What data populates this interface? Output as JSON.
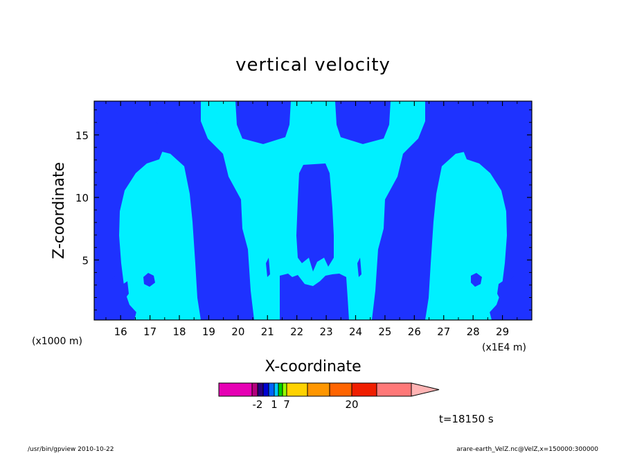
{
  "chart_data": {
    "type": "heatmap",
    "title": "vertical velocity",
    "xlabel": "X-coordinate",
    "ylabel": "Z-coordinate",
    "x_unit_left": "(x1000 m)",
    "x_unit_right": "(x1E4 m)",
    "xlim": [
      15.1,
      30.0
    ],
    "ylim": [
      0.2,
      17.7
    ],
    "x_ticks": [
      16,
      17,
      18,
      19,
      20,
      21,
      22,
      23,
      24,
      25,
      26,
      27,
      28,
      29
    ],
    "y_ticks": [
      5,
      10,
      15
    ],
    "field_colors": {
      "weak_positive": "#00f0ff",
      "weak_negative": "#1e32ff"
    },
    "colorbar": {
      "colors": [
        "#e600b4",
        "#b4007d",
        "#28007d",
        "#0000d2",
        "#0064ff",
        "#00c8ff",
        "#00d200",
        "#96ff00",
        "#ffd200",
        "#ff9600",
        "#ff6400",
        "#f01e00",
        "#ff7878",
        "#ffb4b4"
      ],
      "labels": [
        {
          "text": "-2",
          "at": -2
        },
        {
          "text": "1",
          "at": 1
        },
        {
          "text": "7",
          "at": 7
        },
        {
          "text": "20",
          "at": 20
        }
      ]
    },
    "time_label": "t=18150 s",
    "footer_left": "/usr/bin/gpview  2010-10-22",
    "footer_right": "arare-earth_VelZ.nc@VelZ,x=150000:300000"
  }
}
